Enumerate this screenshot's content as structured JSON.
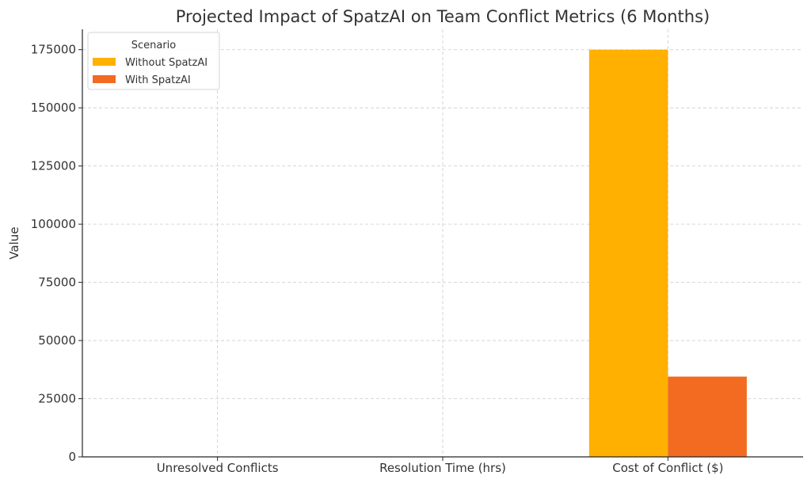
{
  "chart_data": {
    "type": "bar",
    "title": "Projected Impact of SpatzAI on Team Conflict Metrics (6 Months)",
    "xlabel": "",
    "ylabel": "Value",
    "categories": [
      "Unresolved Conflicts",
      "Resolution Time (hrs)",
      "Cost of Conflict ($)"
    ],
    "series": [
      {
        "name": "Without SpatzAI",
        "color": "#FFB000",
        "values": [
          25,
          48,
          175000
        ]
      },
      {
        "name": "With SpatzAI",
        "color": "#F26B21",
        "values": [
          8,
          12,
          34500
        ]
      }
    ],
    "ylim": [
      0,
      183750
    ],
    "yticks": [
      0,
      25000,
      50000,
      75000,
      100000,
      125000,
      150000,
      175000
    ],
    "ytick_labels": [
      "0",
      "25000",
      "50000",
      "75000",
      "100000",
      "125000",
      "150000",
      "175000"
    ],
    "grid": true,
    "legend": {
      "title": "Scenario",
      "placement": "top-left"
    }
  }
}
